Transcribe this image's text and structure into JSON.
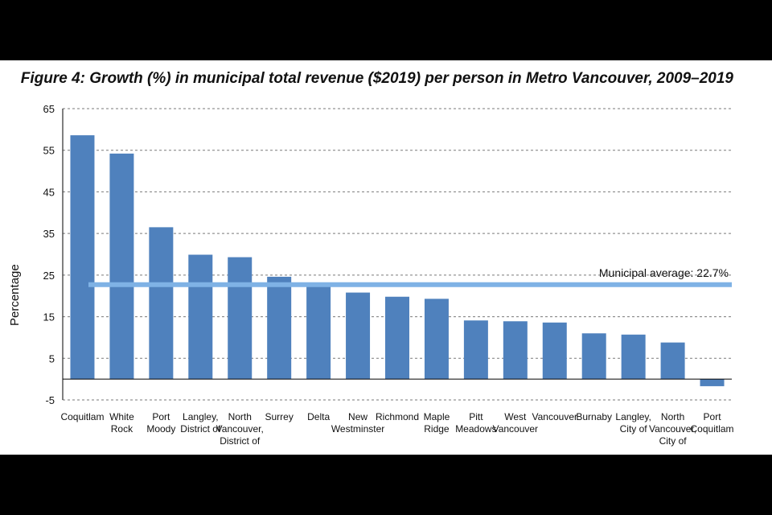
{
  "chart_data": {
    "type": "bar",
    "title": "Figure 4: Growth (%) in municipal total revenue ($2019) per person in Metro Vancouver, 2009–2019",
    "ylabel": "Percentage",
    "xlabel": "",
    "ylim": [
      -5,
      65
    ],
    "yticks": [
      -5,
      5,
      15,
      25,
      35,
      45,
      55,
      65
    ],
    "grid": true,
    "categories": [
      [
        "Coquitlam"
      ],
      [
        "White",
        "Rock"
      ],
      [
        "Port",
        "Moody"
      ],
      [
        "Langley,",
        "District of"
      ],
      [
        "North",
        "Vancouver,",
        "District of"
      ],
      [
        "Surrey"
      ],
      [
        "Delta"
      ],
      [
        "New",
        "Westminster"
      ],
      [
        "Richmond"
      ],
      [
        "Maple",
        "Ridge"
      ],
      [
        "Pitt",
        "Meadows"
      ],
      [
        "West",
        "Vancouver"
      ],
      [
        "Vancouver"
      ],
      [
        "Burnaby"
      ],
      [
        "Langley,",
        "City of"
      ],
      [
        "North",
        "Vancouver,",
        "City of"
      ],
      [
        "Port",
        "Coquitlam"
      ]
    ],
    "values": [
      58.6,
      54.2,
      36.5,
      29.9,
      29.3,
      24.6,
      23.1,
      20.8,
      19.8,
      19.3,
      14.1,
      13.9,
      13.6,
      11.0,
      10.7,
      8.8,
      -1.7
    ],
    "reference_line": {
      "value": 22.7,
      "label": "Municipal average: 22.7%"
    },
    "colors": {
      "bar": "#4f81bd",
      "reference": "#7fb2e5",
      "grid": "#7a7a7a",
      "axis": "#000000"
    }
  }
}
